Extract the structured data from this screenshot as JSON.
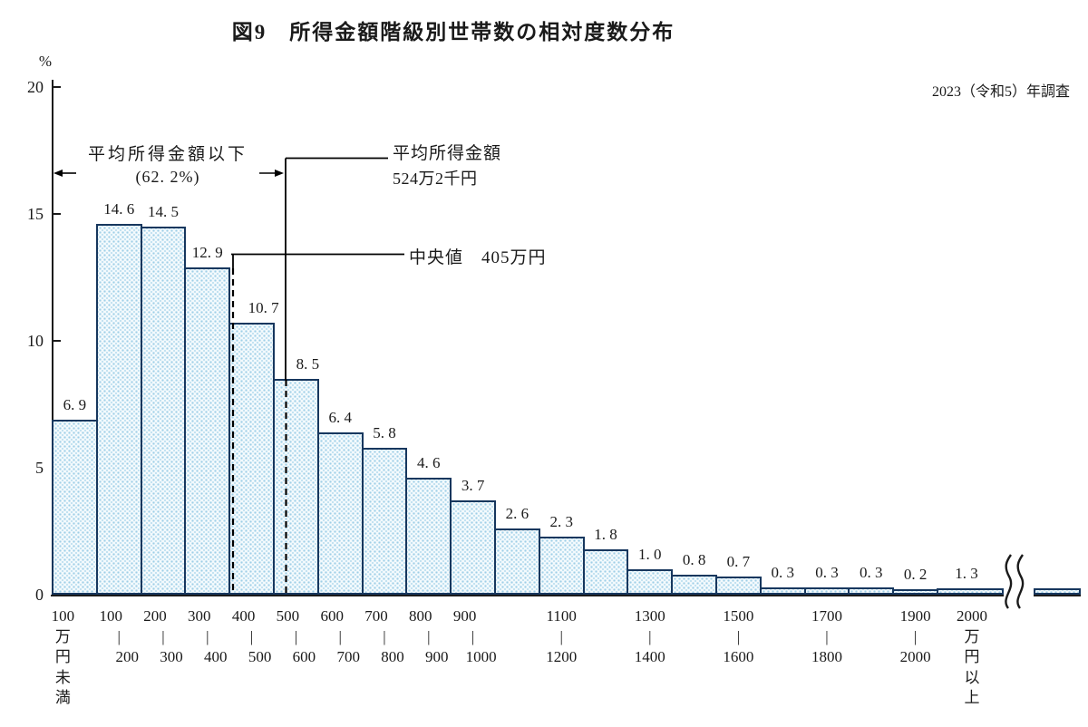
{
  "figure": {
    "title": "図9　所得金額階級別世帯数の相対度数分布",
    "survey_note": "2023（令和5）年調査"
  },
  "y_axis": {
    "unit": "%",
    "ticks": [
      "20",
      "15",
      "10",
      "5",
      "0"
    ]
  },
  "annotations": {
    "below_mean": {
      "line1": "平均所得金額以下",
      "line2": "(62. 2%)"
    },
    "mean": {
      "line1": "平均所得金額",
      "line2": "524万2千円"
    },
    "median": {
      "label": "中央値　405万円"
    }
  },
  "chart_data": {
    "type": "bar",
    "title": "所得金額階級別世帯数の相対度数分布",
    "ylabel": "%",
    "ylim": [
      0,
      20
    ],
    "y_ticks": [
      0,
      5,
      10,
      15,
      20
    ],
    "x_unit": "万円",
    "grid": false,
    "has_axis_break_right": true,
    "mean_man_yen": 524.2,
    "median_man_yen": 405,
    "share_below_mean_pct": 62.2,
    "bars": [
      {
        "category": "100万円未満",
        "value": 6.9,
        "value_label": "6. 9",
        "x_label": {
          "style": "vertical",
          "chars": [
            "100",
            "万",
            "円",
            "未",
            "満"
          ]
        }
      },
      {
        "category": "100〜200",
        "value": 14.6,
        "value_label": "14. 6",
        "x_label": {
          "style": "range",
          "from": "100",
          "to": "200"
        }
      },
      {
        "category": "200〜300",
        "value": 14.5,
        "value_label": "14. 5",
        "x_label": {
          "style": "range",
          "from": "200",
          "to": "300"
        }
      },
      {
        "category": "300〜400",
        "value": 12.9,
        "value_label": "12. 9",
        "x_label": {
          "style": "range",
          "from": "300",
          "to": "400"
        }
      },
      {
        "category": "400〜500",
        "value": 10.7,
        "value_label": "10. 7",
        "x_label": {
          "style": "range",
          "from": "400",
          "to": "500"
        }
      },
      {
        "category": "500〜600",
        "value": 8.5,
        "value_label": "8. 5",
        "x_label": {
          "style": "range",
          "from": "500",
          "to": "600"
        }
      },
      {
        "category": "600〜700",
        "value": 6.4,
        "value_label": "6. 4",
        "x_label": {
          "style": "range",
          "from": "600",
          "to": "700"
        }
      },
      {
        "category": "700〜800",
        "value": 5.8,
        "value_label": "5. 8",
        "x_label": {
          "style": "range",
          "from": "700",
          "to": "800"
        }
      },
      {
        "category": "800〜900",
        "value": 4.6,
        "value_label": "4. 6",
        "x_label": {
          "style": "range",
          "from": "800",
          "to": "900"
        }
      },
      {
        "category": "900〜1000",
        "value": 3.7,
        "value_label": "3. 7",
        "x_label": {
          "style": "range",
          "from": "900",
          "to": "1000"
        }
      },
      {
        "category": "1000〜1100",
        "value": 2.6,
        "value_label": "2. 6",
        "x_label": null
      },
      {
        "category": "1100〜1200",
        "value": 2.3,
        "value_label": "2. 3",
        "x_label": {
          "style": "range",
          "from": "1100",
          "to": "1200"
        }
      },
      {
        "category": "1200〜1300",
        "value": 1.8,
        "value_label": "1. 8",
        "x_label": null
      },
      {
        "category": "1300〜1400",
        "value": 1.0,
        "value_label": "1. 0",
        "x_label": {
          "style": "range",
          "from": "1300",
          "to": "1400"
        }
      },
      {
        "category": "1400〜1500",
        "value": 0.8,
        "value_label": "0. 8",
        "x_label": null
      },
      {
        "category": "1500〜1600",
        "value": 0.7,
        "value_label": "0. 7",
        "x_label": {
          "style": "range",
          "from": "1500",
          "to": "1600"
        }
      },
      {
        "category": "1600〜1700",
        "value": 0.3,
        "value_label": "0. 3",
        "x_label": null
      },
      {
        "category": "1700〜1800",
        "value": 0.3,
        "value_label": "0. 3",
        "x_label": {
          "style": "range",
          "from": "1700",
          "to": "1800"
        }
      },
      {
        "category": "1800〜1900",
        "value": 0.3,
        "value_label": "0. 3",
        "x_label": null
      },
      {
        "category": "1900〜2000",
        "value": 0.2,
        "value_label": "0. 2",
        "x_label": {
          "style": "range",
          "from": "1900",
          "to": "2000"
        }
      },
      {
        "category": "2000万円以上",
        "value": 1.3,
        "value_label": "1. 3",
        "open_ended": true,
        "x_label": {
          "style": "vertical",
          "chars": [
            "2000",
            "万",
            "円",
            "以",
            "上"
          ]
        }
      }
    ]
  },
  "colors": {
    "bar_border": "#17375e",
    "bar_dot": "#9fcfe7",
    "bar_background": "#f4fafd",
    "annotation_line": "#000000",
    "text": "#1a1a1a"
  }
}
